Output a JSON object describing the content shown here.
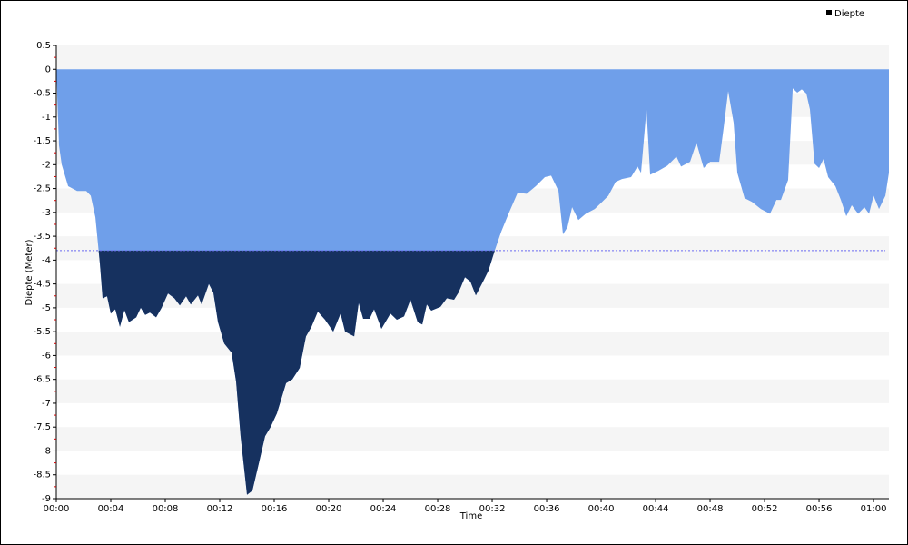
{
  "chart_data": {
    "type": "area",
    "x_label": "Time",
    "y_label": "Diepte (Meter)",
    "x": [
      0,
      0.2,
      0.4,
      0.87,
      1.53,
      2.2,
      2.53,
      2.87,
      3.2,
      3.4,
      3.73,
      4.0,
      4.33,
      4.67,
      5.0,
      5.33,
      5.87,
      6.2,
      6.53,
      6.87,
      7.33,
      7.73,
      8.2,
      8.67,
      9.07,
      9.53,
      9.87,
      10.4,
      10.67,
      11.2,
      11.53,
      11.87,
      12.33,
      12.87,
      13.2,
      13.53,
      14.0,
      14.4,
      14.87,
      15.33,
      15.73,
      16.2,
      16.87,
      17.33,
      17.87,
      18.33,
      18.73,
      19.2,
      19.73,
      20.33,
      20.87,
      21.2,
      21.87,
      22.2,
      22.53,
      23.0,
      23.33,
      23.87,
      24.53,
      25.0,
      25.53,
      26.0,
      26.53,
      26.87,
      27.2,
      27.53,
      28.2,
      28.67,
      29.2,
      29.53,
      30.0,
      30.4,
      30.8,
      31.33,
      31.73,
      32.2,
      32.67,
      33.2,
      33.87,
      34.53,
      35.2,
      35.87,
      36.33,
      36.87,
      37.2,
      37.53,
      37.87,
      38.33,
      38.87,
      39.53,
      40.0,
      40.53,
      41.07,
      41.53,
      42.2,
      42.67,
      42.93,
      43.33,
      43.6,
      44.2,
      44.87,
      45.53,
      45.87,
      46.53,
      47.0,
      47.53,
      48.0,
      48.67,
      49.0,
      49.33,
      49.73,
      50.0,
      50.53,
      51.07,
      51.73,
      52.4,
      52.87,
      53.2,
      53.73,
      54.07,
      54.4,
      54.73,
      55.07,
      55.33,
      55.67,
      56.0,
      56.33,
      56.67,
      57.2,
      57.6,
      58.0,
      58.4,
      58.87,
      59.33,
      59.67,
      60.0,
      60.4,
      60.87,
      61.13
    ],
    "series": [
      {
        "name": "Diepte",
        "color": "#16315f",
        "values": [
          0,
          -1.6,
          -2.0,
          -2.45,
          -2.55,
          -2.55,
          -2.65,
          -3.1,
          -4.07,
          -4.8,
          -4.76,
          -5.12,
          -5.03,
          -5.4,
          -5.05,
          -5.3,
          -5.2,
          -5.0,
          -5.15,
          -5.1,
          -5.2,
          -5.0,
          -4.7,
          -4.8,
          -4.95,
          -4.76,
          -4.93,
          -4.74,
          -4.93,
          -4.5,
          -4.68,
          -5.3,
          -5.75,
          -5.94,
          -6.55,
          -7.69,
          -8.92,
          -8.83,
          -8.26,
          -7.69,
          -7.5,
          -7.21,
          -6.58,
          -6.5,
          -6.26,
          -5.6,
          -5.4,
          -5.08,
          -5.25,
          -5.5,
          -5.12,
          -5.5,
          -5.6,
          -4.9,
          -5.23,
          -5.23,
          -5.03,
          -5.44,
          -5.12,
          -5.25,
          -5.18,
          -4.83,
          -5.3,
          -5.35,
          -4.93,
          -5.06,
          -4.98,
          -4.8,
          -4.83,
          -4.68,
          -4.36,
          -4.45,
          -4.74,
          -4.45,
          -4.22,
          -3.79,
          -3.4,
          -3.03,
          -2.59,
          -2.61,
          -2.45,
          -2.26,
          -2.23,
          -2.55,
          -3.46,
          -3.31,
          -2.89,
          -3.16,
          -3.03,
          -2.93,
          -2.8,
          -2.65,
          -2.36,
          -2.3,
          -2.26,
          -2.04,
          -2.17,
          -0.84,
          -2.21,
          -2.13,
          -2.02,
          -1.83,
          -2.04,
          -1.94,
          -1.54,
          -2.07,
          -1.94,
          -1.94,
          -1.22,
          -0.46,
          -1.12,
          -2.17,
          -2.7,
          -2.78,
          -2.93,
          -3.03,
          -2.74,
          -2.74,
          -2.32,
          -0.4,
          -0.49,
          -0.42,
          -0.51,
          -0.84,
          -1.98,
          -2.07,
          -1.88,
          -2.26,
          -2.45,
          -2.74,
          -3.08,
          -2.85,
          -3.03,
          -2.89,
          -3.03,
          -2.65,
          -2.93,
          -2.65,
          -2.17
        ]
      }
    ],
    "fill_above_threshold": "#6f9fea",
    "threshold": -3.8,
    "threshold_color": "#6a6af0",
    "stripe_color": "#f5f5f5",
    "xlim": [
      0,
      61.13
    ],
    "xticks": [
      {
        "value": 0,
        "label": "00:00"
      },
      {
        "value": 4,
        "label": "00:04"
      },
      {
        "value": 8,
        "label": "00:08"
      },
      {
        "value": 12,
        "label": "00:12"
      },
      {
        "value": 16,
        "label": "00:16"
      },
      {
        "value": 20,
        "label": "00:20"
      },
      {
        "value": 24,
        "label": "00:24"
      },
      {
        "value": 28,
        "label": "00:28"
      },
      {
        "value": 32,
        "label": "00:32"
      },
      {
        "value": 36,
        "label": "00:36"
      },
      {
        "value": 40,
        "label": "00:40"
      },
      {
        "value": 44,
        "label": "00:44"
      },
      {
        "value": 48,
        "label": "00:48"
      },
      {
        "value": 52,
        "label": "00:52"
      },
      {
        "value": 56,
        "label": "00:56"
      },
      {
        "value": 60,
        "label": "01:00"
      }
    ],
    "ylim": [
      -9,
      0.5
    ],
    "yticks": [
      0.5,
      0,
      -0.5,
      -1,
      -1.5,
      -2,
      -2.5,
      -3,
      -3.5,
      -4,
      -4.5,
      -5,
      -5.5,
      -6,
      -6.5,
      -7,
      -7.5,
      -8,
      -8.5,
      -9
    ],
    "legend": "top-right"
  }
}
